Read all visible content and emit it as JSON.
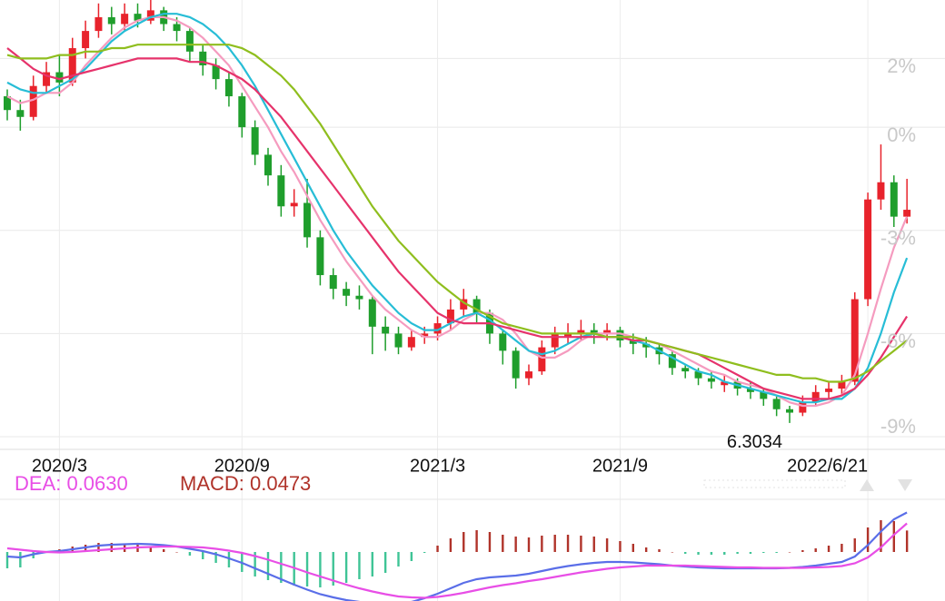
{
  "chart_data": [
    {
      "type": "candlestick",
      "categories": [
        null,
        null,
        null,
        null,
        "2020/3",
        null,
        null,
        null,
        null,
        null,
        null,
        null,
        null,
        null,
        null,
        null,
        null,
        null,
        "2020/9",
        null,
        null,
        null,
        null,
        null,
        null,
        null,
        null,
        null,
        null,
        null,
        null,
        null,
        null,
        "2021/3",
        null,
        null,
        null,
        null,
        null,
        null,
        null,
        null,
        null,
        null,
        null,
        null,
        null,
        "2021/9",
        null,
        null,
        null,
        null,
        null,
        null,
        null,
        null,
        null,
        null,
        null,
        null,
        null,
        null,
        null,
        null,
        null,
        null,
        "2022/6/21",
        null,
        null,
        null
      ],
      "open": [
        0.9,
        0.5,
        0.3,
        1.2,
        1.6,
        1.3,
        2.3,
        2.8,
        3.2,
        3.0,
        3.3,
        3.1,
        3.4,
        3.0,
        2.8,
        2.2,
        1.8,
        1.4,
        0.9,
        0.0,
        -0.8,
        -1.4,
        -2.3,
        -2.2,
        -3.2,
        -4.3,
        -4.7,
        -4.9,
        -5.0,
        -5.8,
        -6.0,
        -6.4,
        -6.1,
        -6.0,
        -5.7,
        -5.3,
        -5.0,
        -5.4,
        -6.0,
        -6.5,
        -7.3,
        -7.1,
        -6.4,
        -6.1,
        -6.0,
        -5.9,
        -6.0,
        -5.9,
        -6.2,
        -6.3,
        -6.4,
        -6.6,
        -7.0,
        -7.1,
        -7.3,
        -7.5,
        -7.4,
        -7.6,
        -7.7,
        -7.9,
        -8.2,
        -8.3,
        -8.0,
        -7.7,
        -7.6,
        -7.4,
        -5.0,
        -2.1,
        -1.6,
        -2.6
      ],
      "high": [
        1.1,
        0.8,
        1.5,
        1.9,
        2.1,
        2.6,
        3.1,
        3.6,
        3.5,
        3.6,
        3.6,
        3.7,
        3.5,
        3.2,
        2.9,
        2.4,
        2.0,
        1.6,
        1.0,
        0.2,
        -0.6,
        -1.1,
        -1.8,
        -1.5,
        -3.0,
        -4.1,
        -4.5,
        -4.6,
        -4.9,
        -5.5,
        -5.8,
        -5.9,
        -5.8,
        -5.5,
        -5.0,
        -4.7,
        -4.9,
        -5.3,
        -5.9,
        -6.4,
        -6.9,
        -6.2,
        -5.8,
        -5.7,
        -5.6,
        -5.7,
        -5.7,
        -5.8,
        -6.0,
        -6.1,
        -6.3,
        -6.5,
        -6.9,
        -7.0,
        -7.1,
        -7.2,
        -7.3,
        -7.4,
        -7.6,
        -7.8,
        -8.1,
        -7.8,
        -7.5,
        -7.4,
        -7.2,
        -4.8,
        -1.9,
        -0.5,
        -1.4,
        -1.5
      ],
      "low": [
        0.2,
        -0.1,
        0.2,
        1.0,
        0.9,
        1.2,
        2.0,
        2.6,
        2.7,
        2.8,
        2.9,
        3.0,
        2.8,
        2.5,
        1.9,
        1.5,
        1.1,
        0.6,
        -0.3,
        -1.1,
        -1.7,
        -2.6,
        -2.6,
        -3.5,
        -4.6,
        -5.0,
        -5.2,
        -5.3,
        -6.6,
        -6.5,
        -6.6,
        -6.5,
        -6.3,
        -6.2,
        -5.9,
        -5.5,
        -5.7,
        -6.3,
        -6.9,
        -7.6,
        -7.5,
        -7.2,
        -6.6,
        -6.3,
        -6.2,
        -6.3,
        -6.2,
        -6.4,
        -6.6,
        -6.7,
        -6.9,
        -7.2,
        -7.3,
        -7.5,
        -7.6,
        -7.7,
        -7.8,
        -7.9,
        -8.1,
        -8.4,
        -8.6,
        -8.4,
        -8.1,
        -7.9,
        -7.8,
        -7.5,
        -5.2,
        -2.4,
        -2.9,
        -2.8
      ],
      "close": [
        0.5,
        0.3,
        1.2,
        1.6,
        1.3,
        2.3,
        2.8,
        3.2,
        3.0,
        3.3,
        3.1,
        3.4,
        3.0,
        2.8,
        2.2,
        1.8,
        1.4,
        0.9,
        0.0,
        -0.8,
        -1.4,
        -2.3,
        -2.2,
        -3.2,
        -4.3,
        -4.7,
        -4.9,
        -5.0,
        -5.8,
        -6.0,
        -6.4,
        -6.1,
        -6.0,
        -5.7,
        -5.3,
        -5.0,
        -5.4,
        -6.0,
        -6.5,
        -7.3,
        -7.1,
        -6.4,
        -6.0,
        -6.0,
        -5.9,
        -6.0,
        -5.9,
        -6.2,
        -6.3,
        -6.4,
        -6.6,
        -7.0,
        -7.1,
        -7.3,
        -7.4,
        -7.4,
        -7.6,
        -7.7,
        -7.9,
        -8.2,
        -8.3,
        -8.0,
        -7.7,
        -7.6,
        -7.4,
        -5.0,
        -2.1,
        -1.6,
        -2.6,
        -2.4
      ],
      "up_color": "#e8232c",
      "down_color": "#1f9e2c",
      "series": [
        {
          "color": "#f59bbf",
          "values": [
            0.9,
            0.7,
            0.8,
            1.0,
            1.0,
            1.3,
            1.8,
            2.2,
            2.6,
            2.9,
            3.1,
            3.2,
            3.2,
            3.1,
            2.9,
            2.6,
            2.2,
            1.8,
            1.2,
            0.6,
            0.0,
            -0.7,
            -1.3,
            -2.0,
            -2.7,
            -3.3,
            -3.9,
            -4.4,
            -4.9,
            -5.3,
            -5.6,
            -5.9,
            -6.1,
            -6.1,
            -5.9,
            -5.6,
            -5.4,
            -5.4,
            -5.6,
            -6.0,
            -6.5,
            -6.7,
            -6.7,
            -6.5,
            -6.2,
            -6.0,
            -6.0,
            -6.0,
            -6.1,
            -6.2,
            -6.3,
            -6.5,
            -6.7,
            -6.9,
            -7.1,
            -7.2,
            -7.4,
            -7.5,
            -7.6,
            -7.8,
            -8.0,
            -8.1,
            -8.1,
            -8.0,
            -7.8,
            -7.2,
            -6.0,
            -4.7,
            -3.5,
            -2.6
          ]
        },
        {
          "color": "#27bdd6",
          "values": [
            1.3,
            1.1,
            1.0,
            1.0,
            1.2,
            1.4,
            1.7,
            2.1,
            2.5,
            2.8,
            3.0,
            3.2,
            3.3,
            3.3,
            3.2,
            3.0,
            2.7,
            2.3,
            1.8,
            1.2,
            0.5,
            -0.2,
            -0.9,
            -1.6,
            -2.3,
            -3.0,
            -3.6,
            -4.1,
            -4.6,
            -5.0,
            -5.4,
            -5.7,
            -5.9,
            -5.9,
            -5.7,
            -5.5,
            -5.4,
            -5.6,
            -5.9,
            -6.2,
            -6.5,
            -6.6,
            -6.5,
            -6.3,
            -6.1,
            -6.0,
            -6.1,
            -6.1,
            -6.2,
            -6.3,
            -6.5,
            -6.7,
            -6.9,
            -7.1,
            -7.2,
            -7.4,
            -7.5,
            -7.6,
            -7.7,
            -7.8,
            -7.9,
            -8.0,
            -8.0,
            -7.9,
            -7.9,
            -7.6,
            -7.0,
            -6.0,
            -4.8,
            -3.8
          ]
        },
        {
          "color": "#e6336b",
          "values": [
            2.3,
            2.0,
            1.7,
            1.5,
            1.4,
            1.5,
            1.6,
            1.7,
            1.8,
            1.9,
            2.0,
            2.0,
            2.0,
            2.0,
            1.9,
            1.9,
            1.8,
            1.6,
            1.4,
            1.1,
            0.7,
            0.3,
            -0.2,
            -0.7,
            -1.2,
            -1.7,
            -2.2,
            -2.7,
            -3.2,
            -3.7,
            -4.2,
            -4.6,
            -5.0,
            -5.4,
            -5.6,
            -5.7,
            -5.7,
            -5.7,
            -5.8,
            -5.9,
            -6.0,
            -6.1,
            -6.1,
            -6.1,
            -6.1,
            -6.1,
            -6.1,
            -6.1,
            -6.2,
            -6.2,
            -6.3,
            -6.4,
            -6.5,
            -6.6,
            -6.8,
            -7.0,
            -7.2,
            -7.4,
            -7.6,
            -7.7,
            -7.8,
            -7.9,
            -7.9,
            -7.9,
            -7.8,
            -7.6,
            -7.2,
            -6.7,
            -6.1,
            -5.5
          ]
        },
        {
          "color": "#8fbe1e",
          "values": [
            2.1,
            2.0,
            2.0,
            2.0,
            2.1,
            2.1,
            2.2,
            2.2,
            2.3,
            2.3,
            2.4,
            2.4,
            2.4,
            2.4,
            2.4,
            2.4,
            2.4,
            2.4,
            2.3,
            2.1,
            1.8,
            1.5,
            1.1,
            0.6,
            0.1,
            -0.5,
            -1.1,
            -1.7,
            -2.3,
            -2.8,
            -3.3,
            -3.7,
            -4.1,
            -4.5,
            -4.8,
            -5.1,
            -5.3,
            -5.5,
            -5.7,
            -5.8,
            -5.9,
            -6.0,
            -6.0,
            -6.0,
            -6.0,
            -6.0,
            -6.1,
            -6.1,
            -6.1,
            -6.2,
            -6.3,
            -6.4,
            -6.5,
            -6.6,
            -6.7,
            -6.8,
            -6.9,
            -7.0,
            -7.1,
            -7.2,
            -7.2,
            -7.3,
            -7.3,
            -7.4,
            -7.4,
            -7.3,
            -7.1,
            -6.8,
            -6.5,
            -6.2
          ]
        }
      ],
      "ylim": [
        -9.5,
        3.7
      ],
      "yticks": [
        {
          "value": 2,
          "label": "2%"
        },
        {
          "value": 0,
          "label": "0%"
        },
        {
          "value": -3,
          "label": "-3%"
        },
        {
          "value": -6,
          "label": "-6%"
        },
        {
          "value": -9,
          "label": "-9%"
        }
      ],
      "grid": true,
      "annotation": "6.3034"
    },
    {
      "type": "macd",
      "series": [
        {
          "color": "#5a6ee8",
          "values": [
            -0.01,
            -0.012,
            -0.005,
            0.0,
            0.002,
            0.006,
            0.01,
            0.014,
            0.016,
            0.017,
            0.018,
            0.017,
            0.015,
            0.012,
            0.007,
            0.002,
            -0.005,
            -0.014,
            -0.024,
            -0.036,
            -0.048,
            -0.06,
            -0.072,
            -0.083,
            -0.093,
            -0.1,
            -0.106,
            -0.11,
            -0.114,
            -0.116,
            -0.114,
            -0.11,
            -0.102,
            -0.092,
            -0.08,
            -0.068,
            -0.06,
            -0.056,
            -0.054,
            -0.052,
            -0.048,
            -0.042,
            -0.036,
            -0.031,
            -0.027,
            -0.024,
            -0.022,
            -0.022,
            -0.023,
            -0.025,
            -0.027,
            -0.03,
            -0.032,
            -0.034,
            -0.035,
            -0.036,
            -0.036,
            -0.036,
            -0.036,
            -0.036,
            -0.035,
            -0.033,
            -0.03,
            -0.026,
            -0.022,
            -0.01,
            0.015,
            0.045,
            0.072,
            0.087
          ]
        },
        {
          "name": "DEA: 0.0630",
          "color": "#e84ee6",
          "values": [
            0.008,
            0.005,
            0.002,
            0.0,
            -0.001,
            0.0,
            0.002,
            0.004,
            0.006,
            0.008,
            0.01,
            0.011,
            0.012,
            0.012,
            0.011,
            0.01,
            0.007,
            0.003,
            -0.002,
            -0.009,
            -0.017,
            -0.026,
            -0.035,
            -0.045,
            -0.054,
            -0.063,
            -0.072,
            -0.08,
            -0.087,
            -0.093,
            -0.098,
            -0.1,
            -0.101,
            -0.099,
            -0.095,
            -0.09,
            -0.084,
            -0.078,
            -0.073,
            -0.069,
            -0.064,
            -0.06,
            -0.055,
            -0.05,
            -0.045,
            -0.041,
            -0.037,
            -0.034,
            -0.032,
            -0.03,
            -0.03,
            -0.03,
            -0.03,
            -0.031,
            -0.032,
            -0.033,
            -0.034,
            -0.034,
            -0.035,
            -0.035,
            -0.035,
            -0.035,
            -0.034,
            -0.033,
            -0.031,
            -0.025,
            -0.012,
            0.01,
            0.038,
            0.063
          ]
        },
        {
          "name": "MACD: 0.0473",
          "color": "#b0332a",
          "down_color": "#3fc496",
          "values": [
            -0.036,
            -0.034,
            -0.014,
            0,
            0.006,
            0.012,
            0.016,
            0.02,
            0.02,
            0.018,
            0.016,
            0.012,
            0.006,
            0,
            -0.008,
            -0.016,
            -0.024,
            -0.034,
            -0.044,
            -0.054,
            -0.062,
            -0.068,
            -0.074,
            -0.076,
            -0.078,
            -0.074,
            -0.068,
            -0.06,
            -0.054,
            -0.046,
            -0.032,
            -0.02,
            -0.002,
            0.014,
            0.03,
            0.044,
            0.048,
            0.044,
            0.038,
            0.034,
            0.032,
            0.036,
            0.038,
            0.038,
            0.036,
            0.034,
            0.03,
            0.024,
            0.018,
            0.01,
            0.006,
            0,
            -0.004,
            -0.006,
            -0.006,
            -0.006,
            -0.004,
            -0.004,
            -0.002,
            -0.002,
            0,
            0.004,
            0.008,
            0.014,
            0.018,
            0.03,
            0.054,
            0.07,
            0.068,
            0.0473
          ]
        }
      ],
      "ylim": [
        -0.108,
        0.116
      ]
    }
  ]
}
